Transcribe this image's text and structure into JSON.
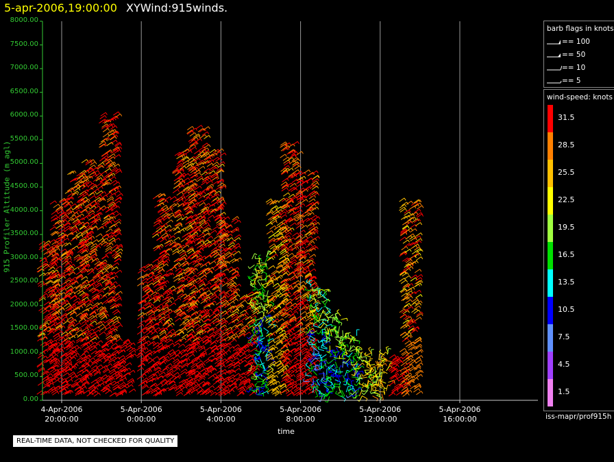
{
  "header": {
    "time": "5-apr-2006,19:00:00",
    "name": "XYWind:915winds."
  },
  "chart_data": {
    "type": "scatter",
    "title": "XYWind:915winds.",
    "xlabel": "time",
    "ylabel": "915 Profiler Altitude (m agl)",
    "ylim": [
      0,
      8000
    ],
    "yticks": [
      "0.00",
      "500.00",
      "1000.00",
      "1500.00",
      "2000.00",
      "2500.00",
      "3000.00",
      "3500.00",
      "4000.00",
      "4500.00",
      "5000.00",
      "5500.00",
      "6000.00",
      "6500.00",
      "7000.00",
      "7500.00",
      "8000.00"
    ],
    "ytick_values": [
      0,
      500,
      1000,
      1500,
      2000,
      2500,
      3000,
      3500,
      4000,
      4500,
      5000,
      5500,
      6000,
      6500,
      7000,
      7500,
      8000
    ],
    "xlim_hours": [
      18.6,
      37.5
    ],
    "xticks": [
      {
        "hour": 20,
        "line1": "4-Apr-2006",
        "line2": "20:00:00"
      },
      {
        "hour": 24,
        "line1": "5-Apr-2006",
        "line2": "0:00:00"
      },
      {
        "hour": 28,
        "line1": "5-Apr-2006",
        "line2": "4:00:00"
      },
      {
        "hour": 32,
        "line1": "5-Apr-2006",
        "line2": "8:00:00"
      },
      {
        "hour": 36,
        "line1": "5-Apr-2006",
        "line2": "12:00:00"
      },
      {
        "hour": 40,
        "line1": "5-Apr-2006",
        "line2": "16:00:00"
      }
    ],
    "grid": "vertical",
    "series_columns": [
      {
        "hour": 19.2,
        "top": 3300,
        "speed": 31
      },
      {
        "hour": 19.8,
        "top": 4200,
        "speed": 31
      },
      {
        "hour": 20.6,
        "top": 4800,
        "speed": 30
      },
      {
        "hour": 21.4,
        "top": 5000,
        "speed": 31
      },
      {
        "hour": 22.3,
        "top": 6000,
        "speed": 31
      },
      {
        "hour": 23.0,
        "top": 1200,
        "speed": 31
      },
      {
        "hour": 24.2,
        "top": 2800,
        "speed": 31
      },
      {
        "hour": 25.0,
        "top": 4300,
        "speed": 31
      },
      {
        "hour": 26.0,
        "top": 5200,
        "speed": 30
      },
      {
        "hour": 26.7,
        "top": 5700,
        "speed": 31
      },
      {
        "hour": 27.5,
        "top": 5200,
        "speed": 31
      },
      {
        "hour": 28.3,
        "top": 3800,
        "speed": 31
      },
      {
        "hour": 29.2,
        "top": 2200,
        "speed": 30
      },
      {
        "hour": 30.0,
        "top": 3000,
        "speed": 14
      },
      {
        "hour": 30.7,
        "top": 4200,
        "speed": 26
      },
      {
        "hour": 31.4,
        "top": 5400,
        "speed": 31
      },
      {
        "hour": 32.2,
        "top": 4800,
        "speed": 31
      },
      {
        "hour": 32.9,
        "top": 2400,
        "speed": 12
      },
      {
        "hour": 33.7,
        "top": 1800,
        "speed": 14
      },
      {
        "hour": 34.5,
        "top": 1400,
        "speed": 13
      },
      {
        "hour": 35.2,
        "top": 1000,
        "speed": 22
      },
      {
        "hour": 36.0,
        "top": 1000,
        "speed": 24
      },
      {
        "hour": 36.8,
        "top": 900,
        "speed": 31
      },
      {
        "hour": 37.4,
        "top": 4200,
        "speed": 28
      }
    ]
  },
  "legend": {
    "flags_title": "barb flags in knots",
    "flags": [
      {
        "label": "== 100",
        "kind": "100"
      },
      {
        "label": "== 50",
        "kind": "50"
      },
      {
        "label": "== 10",
        "kind": "10"
      },
      {
        "label": "== 5",
        "kind": "5"
      }
    ],
    "speed_title": "wind-speed: knots",
    "speed_scale": [
      {
        "label": "31.5",
        "color": "#ff0000"
      },
      {
        "label": "28.5",
        "color": "#ff8000"
      },
      {
        "label": "25.5",
        "color": "#ffc000"
      },
      {
        "label": "22.5",
        "color": "#ffff00"
      },
      {
        "label": "19.5",
        "color": "#a0ff40"
      },
      {
        "label": "16.5",
        "color": "#00e000"
      },
      {
        "label": "13.5",
        "color": "#00ffff"
      },
      {
        "label": "10.5",
        "color": "#0000ff"
      },
      {
        "label": "7.5",
        "color": "#6090ff"
      },
      {
        "label": "4.5",
        "color": "#a040ff"
      },
      {
        "label": "1.5",
        "color": "#f080f0"
      }
    ],
    "source": "iss-mapr/prof915h"
  },
  "footer": {
    "qc_note": "REAL-TIME DATA, NOT CHECKED FOR QUALITY"
  }
}
